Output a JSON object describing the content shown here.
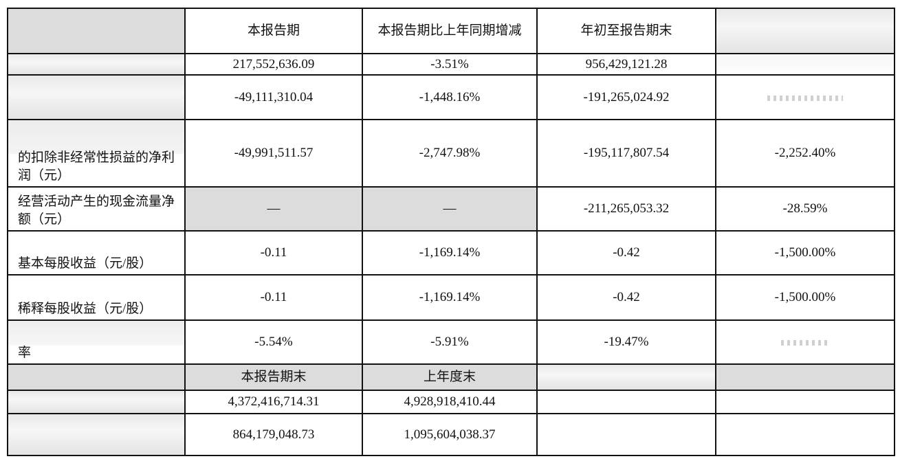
{
  "header": {
    "col_current": "本报告期",
    "col_yoy": "本报告期比上年同期增减",
    "col_ytd": "年初至报告期末"
  },
  "rows": [
    {
      "label": "",
      "current": "217,552,636.09",
      "yoy": "-3.51%",
      "ytd": "956,429,121.28",
      "ytd_yoy": ""
    },
    {
      "label": "",
      "current": "-49,111,310.04",
      "yoy": "-1,448.16%",
      "ytd": "-191,265,024.92",
      "ytd_yoy": ""
    },
    {
      "label": "的扣除非经常性损益的净利润（元）",
      "current": "-49,991,511.57",
      "yoy": "-2,747.98%",
      "ytd": "-195,117,807.54",
      "ytd_yoy": "-2,252.40%"
    },
    {
      "label": "经营活动产生的现金流量净额（元）",
      "current": "—",
      "yoy": "—",
      "ytd": "-211,265,053.32",
      "ytd_yoy": "-28.59%"
    },
    {
      "label": "基本每股收益（元/股）",
      "current": "-0.11",
      "yoy": "-1,169.14%",
      "ytd": "-0.42",
      "ytd_yoy": "-1,500.00%"
    },
    {
      "label": "稀释每股收益（元/股）",
      "current": "-0.11",
      "yoy": "-1,169.14%",
      "ytd": "-0.42",
      "ytd_yoy": "-1,500.00%"
    },
    {
      "label": "率",
      "current": "-5.54%",
      "yoy": "-5.91%",
      "ytd": "-19.47%",
      "ytd_yoy": ""
    }
  ],
  "balance_header": {
    "col_period_end": "本报告期末",
    "col_prev_year_end": "上年度末"
  },
  "balance_rows": [
    {
      "label": "",
      "period_end": "4,372,416,714.31",
      "prev_year_end": "4,928,918,410.44"
    },
    {
      "label": "",
      "period_end": "864,179,048.73",
      "prev_year_end": "1,095,604,038.37"
    }
  ]
}
